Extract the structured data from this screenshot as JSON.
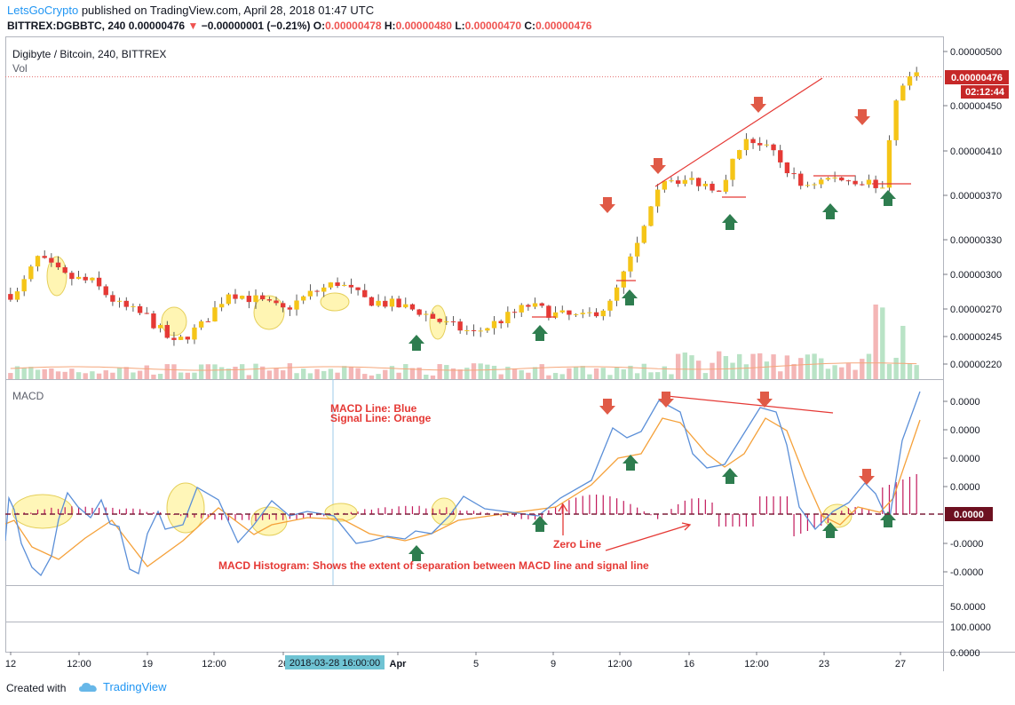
{
  "header": {
    "author": "LetsGoCrypto",
    "published": "published on TradingView.com, April 28, 2018 01:47 UTC",
    "symbol": "BITTREX:DGBBTC, 240",
    "last": "0.00000476",
    "arrow": "▼",
    "change": "−0.00000001 (−0.21%)",
    "o_label": "O:",
    "o": "0.00000478",
    "h_label": "H:",
    "h": "0.00000480",
    "l_label": "L:",
    "l": "0.00000470",
    "c_label": "C:",
    "c": "0.00000476"
  },
  "price_pane": {
    "title": "Digibyte / Bitcoin, 240, BITTREX",
    "vol_label": "Vol",
    "price_tag": "0.00000476",
    "timer_tag": "02:12:44",
    "y_ticks": [
      "0.00000500",
      "0.00000450",
      "0.00000410",
      "0.00000370",
      "0.00000330",
      "0.00000300",
      "0.00000270",
      "0.00000245",
      "0.00000220"
    ]
  },
  "macd_pane": {
    "title": "MACD",
    "note1": "MACD Line: Blue",
    "note2": "Signal Line: Orange",
    "zero_line_label": "Zero Line",
    "histogram_note": "MACD Histogram: Shows the extent of separation between MACD line and signal line",
    "zero_tag": "0.0000",
    "y_ticks": [
      "0.0000",
      "0.0000",
      "0.0000",
      "0.0000",
      "-0.0000",
      "-0.0000"
    ]
  },
  "rsi_pane": {
    "y_ticks": [
      "50.0000"
    ]
  },
  "extra_pane": {
    "y_ticks": [
      "100.0000",
      "0.0000"
    ]
  },
  "x_axis": {
    "ticks": [
      "12",
      "12:00",
      "19",
      "12:00",
      "26",
      "Apr",
      "5",
      "9",
      "12:00",
      "16",
      "12:00",
      "23",
      "27"
    ],
    "cursor_label": "2018-03-28 16:00:00"
  },
  "footer": {
    "created": "Created with",
    "brand": "TradingView"
  },
  "colors": {
    "up": "#f5c518",
    "down": "#e53935",
    "macd_line": "#5b8fd8",
    "signal_line": "#f5a13a",
    "histogram": "#c2185b",
    "annotation": "#e53935",
    "arrow_down": "#e05a47",
    "arrow_up": "#2e7d4f",
    "highlight": "#fff3a0"
  },
  "chart_data": {
    "type": "candlestick",
    "series": [
      {
        "name": "DGB/BTC price",
        "path": [
          [
            1,
            2.83
          ],
          [
            4,
            3.14
          ],
          [
            8,
            2.98
          ],
          [
            12,
            2.93
          ],
          [
            16,
            2.73
          ],
          [
            20,
            2.63
          ],
          [
            24,
            2.38
          ],
          [
            28,
            2.55
          ],
          [
            32,
            2.85
          ],
          [
            36,
            2.78
          ],
          [
            40,
            2.69
          ],
          [
            44,
            2.83
          ],
          [
            48,
            2.93
          ],
          [
            52,
            2.78
          ],
          [
            56,
            2.74
          ],
          [
            60,
            2.68
          ],
          [
            64,
            2.56
          ],
          [
            68,
            2.48
          ],
          [
            72,
            2.6
          ],
          [
            76,
            2.73
          ],
          [
            80,
            2.65
          ],
          [
            84,
            2.62
          ],
          [
            88,
            2.74
          ],
          [
            92,
            3.25
          ],
          [
            96,
            3.86
          ],
          [
            100,
            3.83
          ],
          [
            104,
            3.77
          ],
          [
            108,
            4.23
          ],
          [
            112,
            4.07
          ],
          [
            116,
            3.79
          ],
          [
            120,
            3.85
          ],
          [
            124,
            3.84
          ],
          [
            128,
            3.79
          ],
          [
            130,
            4.52
          ],
          [
            132,
            4.76
          ]
        ]
      }
    ],
    "x_unit": "candle index (4h)",
    "y_unit": "price in BTC ×1e-6",
    "ylim": [
      2.2,
      5.0
    ],
    "annotations": {
      "down_arrows_price": [
        [
          97,
          3.9
        ],
        [
          101,
          4.3
        ],
        [
          112,
          4.6
        ],
        [
          125,
          4.6
        ]
      ],
      "up_arrows_price": [
        [
          66,
          2.55
        ],
        [
          85,
          2.68
        ],
        [
          99,
          3.0
        ],
        [
          113,
          3.9
        ],
        [
          121,
          3.85
        ],
        [
          127,
          3.85
        ]
      ],
      "down_arrows_macd": [
        [
          97,
          1
        ],
        [
          101,
          1
        ],
        [
          111,
          1
        ],
        [
          125,
          1
        ]
      ],
      "up_arrows_macd": [
        [
          66,
          -1
        ],
        [
          85,
          -1
        ],
        [
          100,
          -1
        ],
        [
          113,
          -1
        ],
        [
          123,
          -1
        ],
        [
          127,
          -1
        ]
      ]
    }
  }
}
